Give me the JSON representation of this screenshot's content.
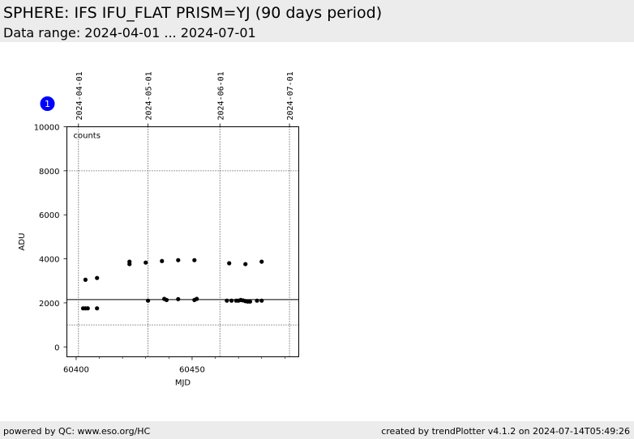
{
  "header": {
    "title": "SPHERE: IFS IFU_FLAT PRISM=YJ (90 days period)",
    "subtitle": "Data range: 2024-04-01 ... 2024-07-01"
  },
  "footer": {
    "left": "powered by QC: www.eso.org/HC",
    "right": "created by trendPlotter v4.1.2 on 2024-07-14T05:49:26"
  },
  "colors": {
    "header_bg": "#ececec",
    "points": "#000000",
    "badge": "#0000ff"
  },
  "chart_data": {
    "type": "scatter",
    "badge": "1",
    "annotation": "counts",
    "xlabel": "MJD",
    "ylabel": "ADU",
    "xlim": [
      60396,
      60496
    ],
    "ylim": [
      -450,
      10000
    ],
    "x_ticks": [
      60400,
      60450
    ],
    "x_minor_ticks": [
      60410,
      60420,
      60430,
      60440,
      60460,
      60470,
      60480,
      60490
    ],
    "y_ticks": [
      0,
      2000,
      4000,
      6000,
      8000,
      10000
    ],
    "date_ticks": [
      {
        "label": "2024-04-01",
        "mjd": 60401
      },
      {
        "label": "2024-05-01",
        "mjd": 60431
      },
      {
        "label": "2024-06-01",
        "mjd": 60462
      },
      {
        "label": "2024-07-01",
        "mjd": 60492
      }
    ],
    "hlines": [
      {
        "y": 2150,
        "style": "solid"
      },
      {
        "y": 1000,
        "style": "dotted"
      },
      {
        "y": 8000,
        "style": "dotted"
      }
    ],
    "grid": true,
    "points": [
      {
        "x": 60404,
        "y": 3050
      },
      {
        "x": 60403,
        "y": 1750
      },
      {
        "x": 60404,
        "y": 1750
      },
      {
        "x": 60405,
        "y": 1750
      },
      {
        "x": 60409,
        "y": 1750
      },
      {
        "x": 60409,
        "y": 3130
      },
      {
        "x": 60423,
        "y": 3870
      },
      {
        "x": 60423,
        "y": 3760
      },
      {
        "x": 60430,
        "y": 3830
      },
      {
        "x": 60431,
        "y": 2100
      },
      {
        "x": 60437,
        "y": 3900
      },
      {
        "x": 60438,
        "y": 2180
      },
      {
        "x": 60439,
        "y": 2130
      },
      {
        "x": 60444,
        "y": 3940
      },
      {
        "x": 60444,
        "y": 2170
      },
      {
        "x": 60451,
        "y": 3940
      },
      {
        "x": 60451,
        "y": 2130
      },
      {
        "x": 60452,
        "y": 2180
      },
      {
        "x": 60465,
        "y": 2100
      },
      {
        "x": 60466,
        "y": 3800
      },
      {
        "x": 60467,
        "y": 2100
      },
      {
        "x": 60469,
        "y": 2100
      },
      {
        "x": 60470,
        "y": 2100
      },
      {
        "x": 60471,
        "y": 2130
      },
      {
        "x": 60472,
        "y": 2110
      },
      {
        "x": 60473,
        "y": 3760
      },
      {
        "x": 60473,
        "y": 2080
      },
      {
        "x": 60474,
        "y": 2060
      },
      {
        "x": 60475,
        "y": 2060
      },
      {
        "x": 60478,
        "y": 2100
      },
      {
        "x": 60480,
        "y": 2100
      },
      {
        "x": 60480,
        "y": 3870
      }
    ]
  }
}
